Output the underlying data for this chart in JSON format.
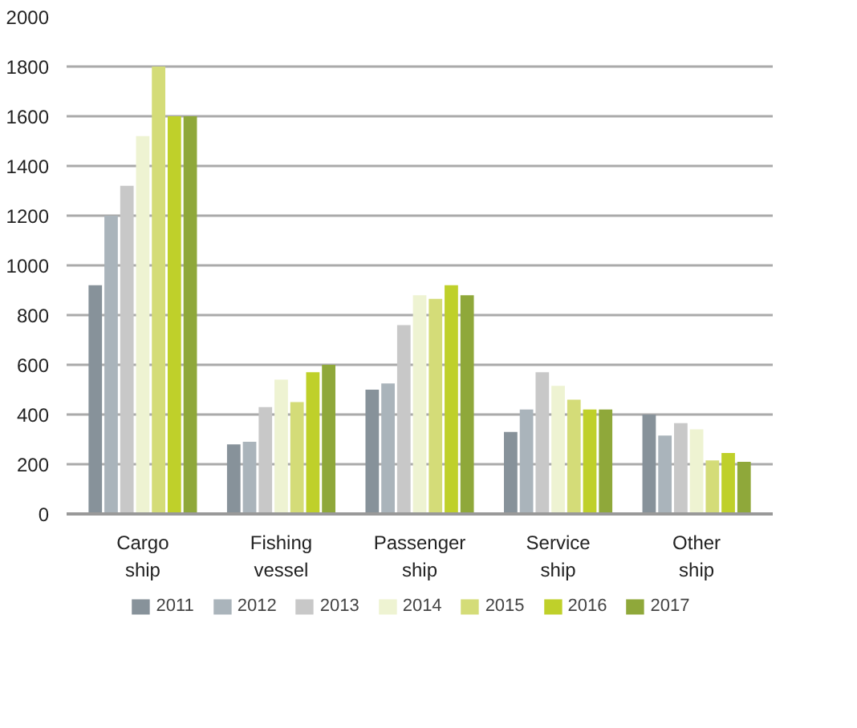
{
  "chart_data": {
    "type": "bar",
    "categories": [
      "Cargo\nship",
      "Fishing\nvessel",
      "Passenger\nship",
      "Service\nship",
      "Other\nship"
    ],
    "series": [
      {
        "name": "2011",
        "color": "#87929a",
        "values": [
          920,
          280,
          500,
          330,
          400
        ]
      },
      {
        "name": "2012",
        "color": "#aab4bb",
        "values": [
          1200,
          290,
          525,
          420,
          315
        ]
      },
      {
        "name": "2013",
        "color": "#c8c8c8",
        "values": [
          1320,
          430,
          760,
          570,
          365
        ]
      },
      {
        "name": "2014",
        "color": "#eef3d2",
        "values": [
          1520,
          540,
          880,
          515,
          340
        ]
      },
      {
        "name": "2015",
        "color": "#d4dc78",
        "values": [
          1800,
          450,
          865,
          460,
          215
        ]
      },
      {
        "name": "2016",
        "color": "#bfd02a",
        "values": [
          1600,
          570,
          920,
          420,
          245
        ]
      },
      {
        "name": "2017",
        "color": "#8fa83a",
        "values": [
          1600,
          600,
          880,
          420,
          210
        ]
      }
    ],
    "ylim": [
      0,
      2000
    ],
    "yticks": [
      0,
      200,
      400,
      600,
      800,
      1000,
      1200,
      1400,
      1600,
      1800,
      2000
    ],
    "grid": "y",
    "legend": "bottom"
  }
}
